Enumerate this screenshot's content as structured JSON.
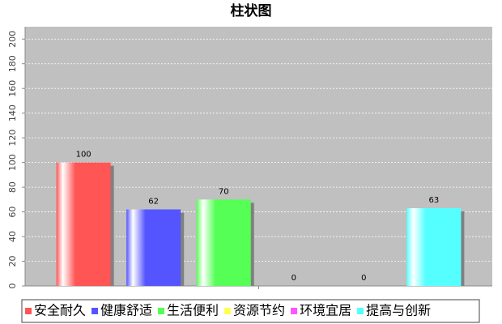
{
  "chart_data": {
    "type": "bar",
    "title": "柱状图",
    "categories": [
      null
    ],
    "series": [
      {
        "name": "安全耐久",
        "color": "#ff5555",
        "values": [
          100
        ]
      },
      {
        "name": "健康舒适",
        "color": "#5555ff",
        "values": [
          62
        ]
      },
      {
        "name": "生活便利",
        "color": "#55ff55",
        "values": [
          70
        ]
      },
      {
        "name": "资源节约",
        "color": "#ffff55",
        "values": [
          0
        ]
      },
      {
        "name": "环境宜居",
        "color": "#ff55ff",
        "values": [
          0
        ]
      },
      {
        "name": "提高与创新",
        "color": "#55ffff",
        "values": [
          63
        ]
      }
    ],
    "ylim": [
      0,
      210
    ],
    "yticks": [
      0,
      20,
      40,
      60,
      80,
      100,
      120,
      140,
      160,
      180,
      200
    ],
    "grid": true,
    "legend": "bottom"
  }
}
